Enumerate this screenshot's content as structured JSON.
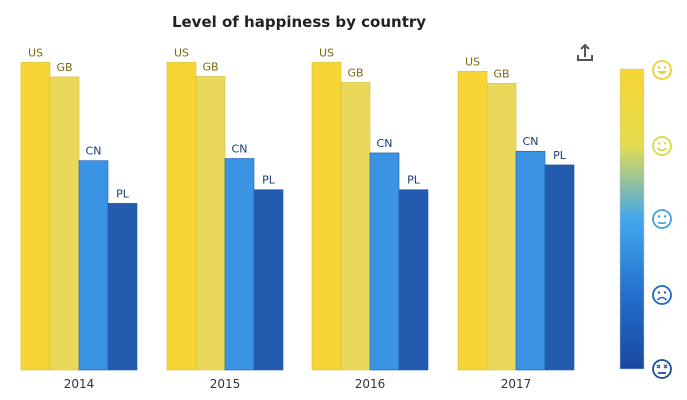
{
  "chart_data": {
    "type": "bar",
    "title": "Level of happiness by country",
    "categories": [
      "2014",
      "2015",
      "2016",
      "2017"
    ],
    "series": [
      {
        "name": "US",
        "values": [
          7.2,
          7.2,
          7.2,
          6.99
        ]
      },
      {
        "name": "GB",
        "values": [
          6.86,
          6.87,
          6.73,
          6.71
        ]
      },
      {
        "name": "CN",
        "values": [
          4.9,
          4.95,
          5.08,
          5.12
        ]
      },
      {
        "name": "PL",
        "values": [
          3.9,
          4.22,
          4.22,
          4.8
        ]
      }
    ],
    "ylim": [
      0,
      7.7
    ],
    "xlabel": "",
    "ylabel": "",
    "grid": false,
    "legend": "none",
    "color_scale": {
      "orientation": "vertical",
      "stops": [
        "#f7d534",
        "#e6dd4f",
        "#43a7ec",
        "#2370cc",
        "#1848a0"
      ],
      "icons": [
        "very-happy-face-icon",
        "happy-face-icon",
        "neutral-face-icon",
        "sad-face-icon",
        "dizzy-face-icon"
      ]
    },
    "colors": {
      "US": "#f7d534",
      "GB": "#ead85a",
      "CN": "#3a93e3",
      "PL": "#235cae",
      "label_warm": "#7a6a10",
      "label_cool": "#163a78"
    }
  },
  "toolbar": {
    "export_icon": "export-icon"
  }
}
